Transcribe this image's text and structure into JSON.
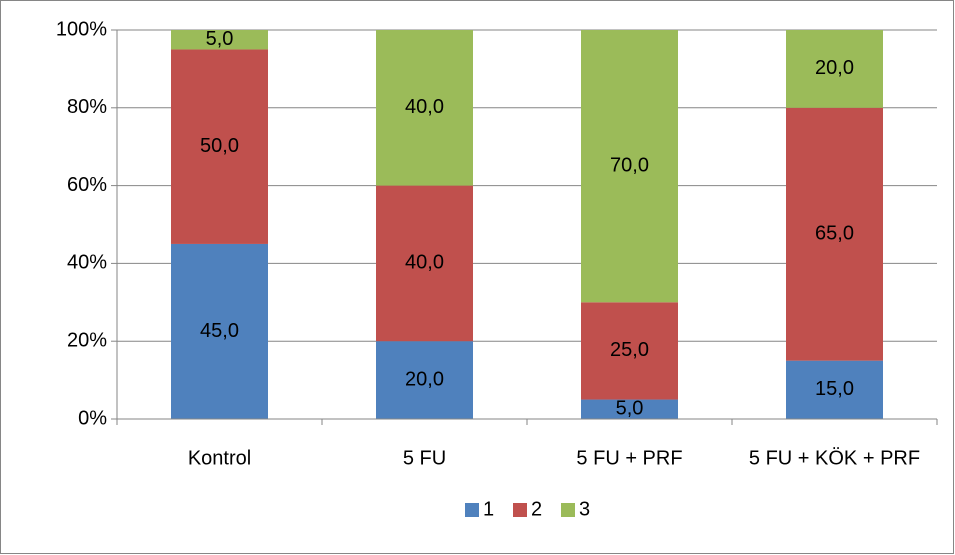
{
  "chart_data": {
    "type": "stacked_bar",
    "categories": [
      "Kontrol",
      "5 FU",
      "5 FU + PRF",
      "5 FU + KÖK + PRF"
    ],
    "series": [
      {
        "name": "1",
        "color": "#4f81bd",
        "values": [
          45,
          20,
          5,
          15
        ],
        "value_labels": [
          "45,0",
          "20,0",
          "5,0",
          "15,0"
        ]
      },
      {
        "name": "2",
        "color": "#c0504d",
        "values": [
          50,
          40,
          25,
          65
        ],
        "value_labels": [
          "50,0",
          "40,0",
          "25,0",
          "65,0"
        ]
      },
      {
        "name": "3",
        "color": "#9bbb59",
        "values": [
          5,
          40,
          70,
          20
        ],
        "value_labels": [
          "5,0",
          "40,0",
          "70,0",
          "20,0"
        ]
      }
    ],
    "ylim": [
      0,
      100
    ],
    "yticks": [
      {
        "value": 0,
        "label": "0%"
      },
      {
        "value": 20,
        "label": "20%"
      },
      {
        "value": 40,
        "label": "40%"
      },
      {
        "value": 60,
        "label": "60%"
      },
      {
        "value": 80,
        "label": "80%"
      },
      {
        "value": 100,
        "label": "100%"
      }
    ],
    "grid": true,
    "legend": "bottom"
  }
}
